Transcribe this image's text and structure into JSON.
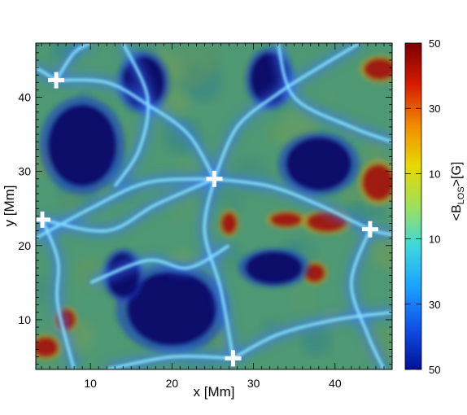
{
  "chart_data": {
    "type": "heatmap",
    "xlabel": "x [Mm]",
    "ylabel": "y [Mm]",
    "xlim": [
      3.3,
      47.0
    ],
    "ylim": [
      3.3,
      47.3
    ],
    "x_ticks": [
      10,
      20,
      30,
      40
    ],
    "y_ticks": [
      10,
      20,
      30,
      40
    ],
    "colorbar": {
      "label": "<B_LOS>[G]",
      "label_main": "<B",
      "label_sub": "LOS",
      "label_tail": ">[G]",
      "tick_labels": [
        "50",
        "30",
        "10",
        "10",
        "30",
        "50"
      ],
      "colors": [
        "#7a0000",
        "#d61a00",
        "#f28a00",
        "#e8d800",
        "#9ee05a",
        "#3cd6e0",
        "#1aa0ff",
        "#1050e6",
        "#00109a"
      ]
    },
    "markers": [
      {
        "x": 5.8,
        "y": 42.3
      },
      {
        "x": 25.2,
        "y": 29.0
      },
      {
        "x": 4.1,
        "y": 23.5
      },
      {
        "x": 44.3,
        "y": 22.2
      },
      {
        "x": 27.5,
        "y": 4.8
      }
    ],
    "negative_patches": [
      {
        "x": 9.0,
        "y": 33.5,
        "rx": 4.2,
        "ry": 5.5
      },
      {
        "x": 16.5,
        "y": 42.0,
        "rx": 2.6,
        "ry": 3.5
      },
      {
        "x": 32.0,
        "y": 42.5,
        "rx": 2.4,
        "ry": 3.5
      },
      {
        "x": 38.0,
        "y": 31.0,
        "rx": 4.0,
        "ry": 3.6
      },
      {
        "x": 20.0,
        "y": 11.5,
        "rx": 5.5,
        "ry": 5.0
      },
      {
        "x": 32.5,
        "y": 17.0,
        "rx": 3.5,
        "ry": 2.2
      },
      {
        "x": 14.0,
        "y": 16.0,
        "rx": 2.0,
        "ry": 3.0
      }
    ],
    "positive_patches": [
      {
        "x": 45.3,
        "y": 28.5,
        "rx": 2.0,
        "ry": 2.5
      },
      {
        "x": 39.0,
        "y": 23.2,
        "rx": 2.5,
        "ry": 1.4
      },
      {
        "x": 34.0,
        "y": 23.5,
        "rx": 2.0,
        "ry": 1.0
      },
      {
        "x": 7.0,
        "y": 10.0,
        "rx": 1.2,
        "ry": 1.5
      },
      {
        "x": 4.5,
        "y": 6.3,
        "rx": 1.6,
        "ry": 1.4
      },
      {
        "x": 37.5,
        "y": 16.3,
        "rx": 1.3,
        "ry": 1.3
      },
      {
        "x": 45.5,
        "y": 43.8,
        "rx": 2.0,
        "ry": 1.5
      },
      {
        "x": 27.0,
        "y": 23.0,
        "rx": 1.0,
        "ry": 1.5
      }
    ],
    "field_lines": [
      [
        [
          3.3,
          21.0
        ],
        [
          10.0,
          25.0
        ],
        [
          17.0,
          28.5
        ],
        [
          25.2,
          29.0
        ]
      ],
      [
        [
          25.2,
          29.0
        ],
        [
          32.0,
          28.0
        ],
        [
          38.0,
          25.5
        ],
        [
          44.3,
          22.2
        ],
        [
          47.0,
          21.5
        ]
      ],
      [
        [
          25.2,
          29.0
        ],
        [
          24.0,
          22.0
        ],
        [
          26.0,
          14.0
        ],
        [
          27.5,
          4.8
        ]
      ],
      [
        [
          25.2,
          29.0
        ],
        [
          28.0,
          36.0
        ],
        [
          33.0,
          40.5
        ],
        [
          38.0,
          44.0
        ],
        [
          43.0,
          47.3
        ]
      ],
      [
        [
          25.2,
          29.0
        ],
        [
          22.0,
          35.0
        ],
        [
          17.0,
          39.0
        ],
        [
          12.0,
          42.0
        ],
        [
          5.8,
          42.3
        ]
      ],
      [
        [
          5.8,
          42.3
        ],
        [
          8.0,
          46.0
        ],
        [
          10.0,
          47.3
        ]
      ],
      [
        [
          3.3,
          44.0
        ],
        [
          5.8,
          42.3
        ]
      ],
      [
        [
          4.1,
          23.5
        ],
        [
          6.0,
          18.0
        ],
        [
          6.0,
          12.0
        ],
        [
          8.0,
          3.3
        ]
      ],
      [
        [
          25.2,
          29.0
        ],
        [
          18.0,
          25.5
        ],
        [
          12.0,
          22.0
        ],
        [
          4.1,
          23.5
        ]
      ],
      [
        [
          44.3,
          22.2
        ],
        [
          42.0,
          15.0
        ],
        [
          44.0,
          8.0
        ],
        [
          46.0,
          3.3
        ]
      ],
      [
        [
          27.5,
          4.8
        ],
        [
          33.0,
          8.0
        ],
        [
          40.0,
          10.0
        ],
        [
          47.0,
          11.0
        ]
      ],
      [
        [
          27.5,
          4.8
        ],
        [
          20.0,
          5.0
        ],
        [
          12.0,
          3.3
        ]
      ],
      [
        [
          14.0,
          47.3
        ],
        [
          17.0,
          40.0
        ],
        [
          16.0,
          33.0
        ],
        [
          13.0,
          28.0
        ]
      ],
      [
        [
          33.0,
          47.3
        ],
        [
          35.0,
          40.0
        ],
        [
          42.0,
          36.0
        ],
        [
          47.0,
          34.0
        ]
      ],
      [
        [
          10.0,
          15.0
        ],
        [
          17.0,
          18.0
        ],
        [
          22.0,
          17.0
        ],
        [
          27.0,
          20.0
        ]
      ]
    ]
  }
}
